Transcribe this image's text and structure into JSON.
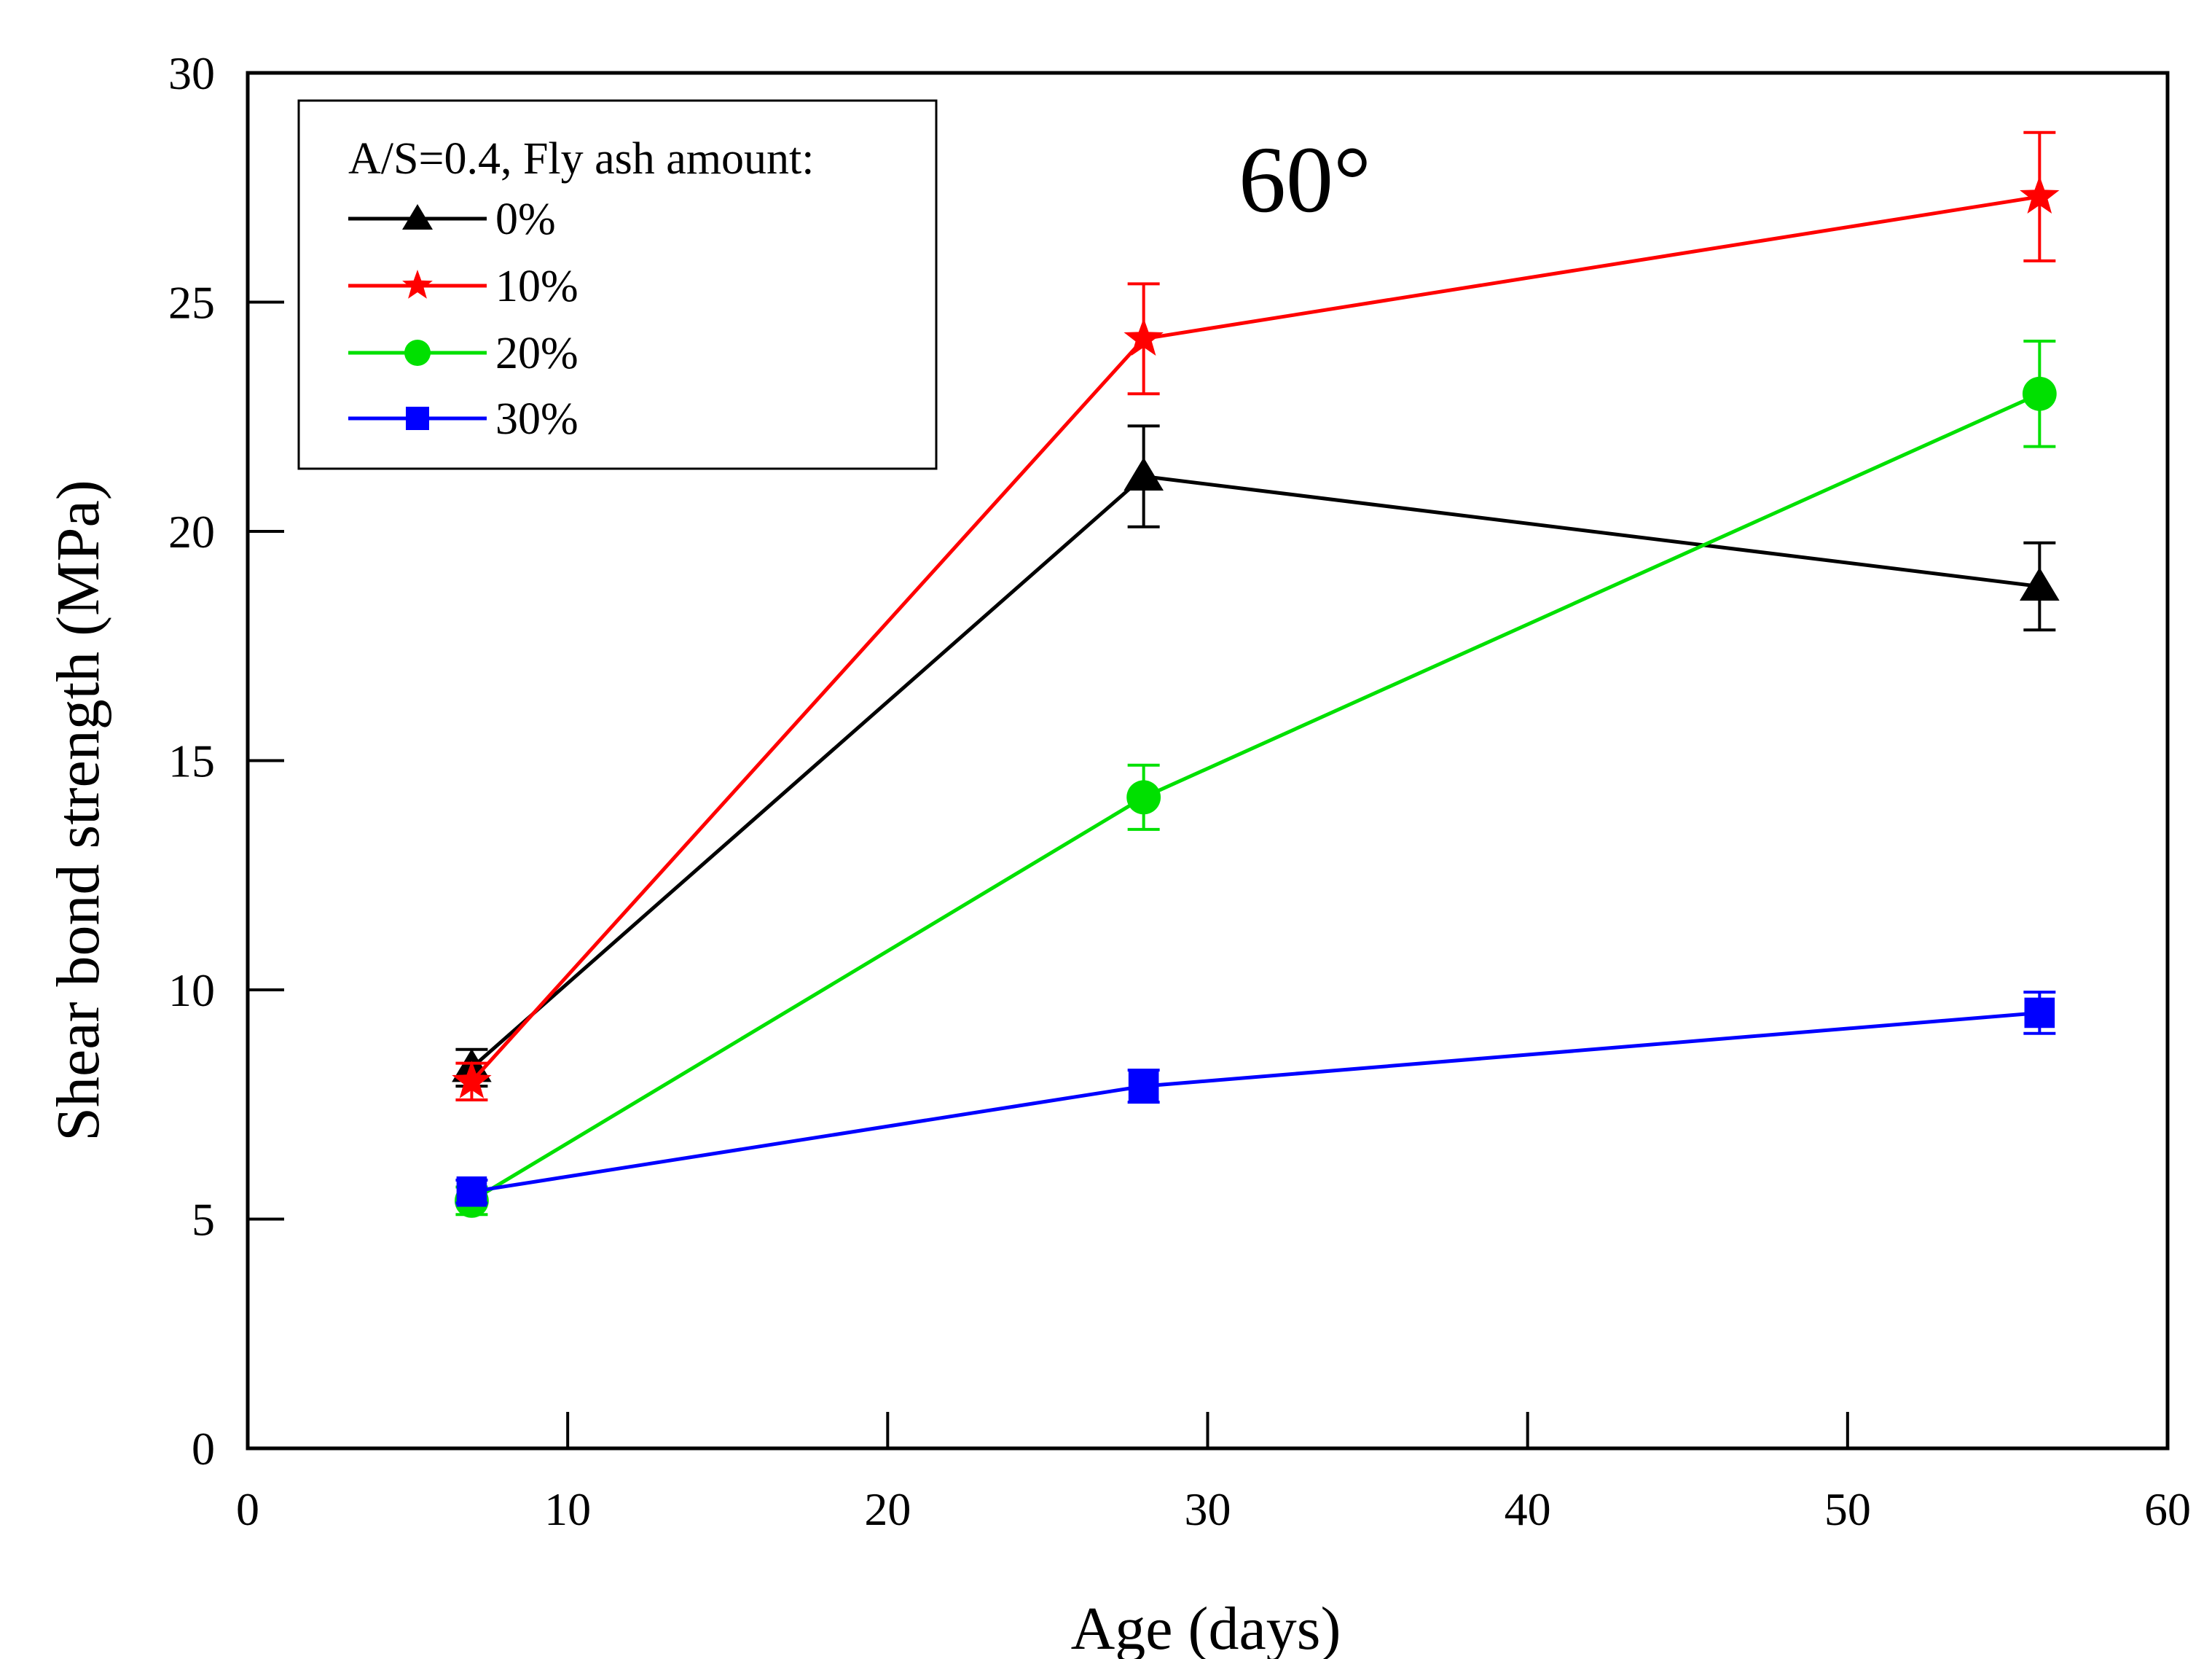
{
  "chart_data": {
    "type": "line",
    "title": "",
    "annotation": "60°",
    "xlabel": "Age (days)",
    "ylabel": "Shear bond strength (MPa)",
    "xlim": [
      0,
      60
    ],
    "ylim": [
      0,
      30
    ],
    "xticks": [
      0,
      10,
      20,
      30,
      40,
      50,
      60
    ],
    "yticks": [
      0,
      5,
      10,
      15,
      20,
      25,
      30
    ],
    "x": [
      7,
      28,
      56
    ],
    "legend_title": "A/S=0.4, Fly ash amount:",
    "legend_position": "top-left",
    "series": [
      {
        "name": "0%",
        "marker": "triangle",
        "color": "#000000",
        "values": [
          8.3,
          21.2,
          18.8
        ],
        "errors": [
          0.4,
          1.1,
          0.95
        ]
      },
      {
        "name": "10%",
        "marker": "star",
        "color": "#ff0000",
        "values": [
          8.0,
          24.2,
          27.3
        ],
        "errors": [
          0.4,
          1.2,
          1.4
        ]
      },
      {
        "name": "20%",
        "marker": "circle",
        "color": "#00e000",
        "values": [
          5.4,
          14.2,
          23.0
        ],
        "errors": [
          0.3,
          0.7,
          1.15
        ]
      },
      {
        "name": "30%",
        "marker": "square",
        "color": "#0000ff",
        "values": [
          5.6,
          7.9,
          9.5
        ],
        "errors": [
          0.25,
          0.35,
          0.45
        ]
      }
    ]
  }
}
